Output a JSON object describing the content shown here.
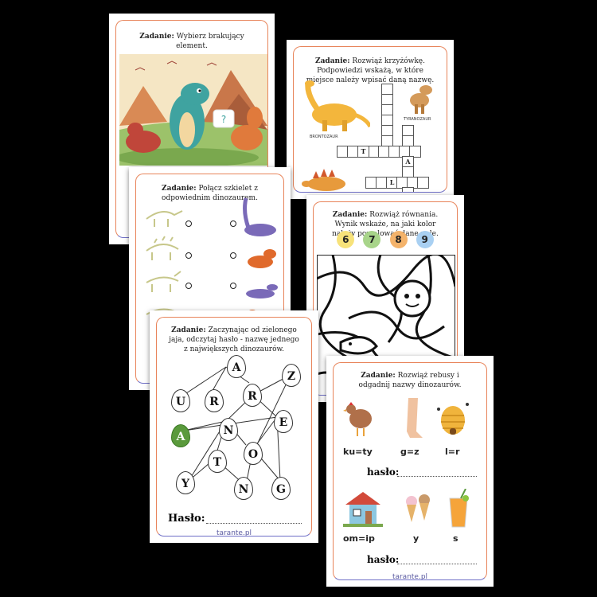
{
  "cards": {
    "missing": {
      "task_prefix": "Zadanie:",
      "task_text": "Wybierz brakujący element.",
      "piece_mark": "?"
    },
    "crossword": {
      "task_prefix": "Zadanie:",
      "task_text": "Rozwiąż krzyżówkę. Podpowiedzi wskażą, w które miejsce należy wpisać daną nazwę.",
      "label_tyranozaur": "TYRANOZAUR",
      "label_brontozaur": "BRONTOZAUR",
      "letters": [
        "T",
        "A",
        "L"
      ]
    },
    "skeleton": {
      "task_prefix": "Zadanie:",
      "task_text": "Połącz szkielet z odpowiednim dinozaurem."
    },
    "equations": {
      "task_prefix": "Zadanie:",
      "task_text": "Rozwiąż równania. Wynik wskaże, na jaki kolor należy pomalować dane pole.",
      "numbers": [
        {
          "value": "6",
          "color": "#f7e27a"
        },
        {
          "value": "7",
          "color": "#a8d48a"
        },
        {
          "value": "8",
          "color": "#f4b36b"
        },
        {
          "value": "9",
          "color": "#a9d0f2"
        }
      ]
    },
    "eggs": {
      "task_prefix": "Zadanie:",
      "task_text": "Zaczynając od zielonego jaja, odczytaj hasło - nazwę jednego z największych dinozaurów.",
      "letters": [
        "A",
        "Z",
        "U",
        "R",
        "R",
        "E",
        "A",
        "N",
        "T",
        "O",
        "Y",
        "N",
        "G"
      ],
      "password_label": "Hasło:",
      "brand": "tarante.pl"
    },
    "rebus": {
      "task_prefix": "Zadanie:",
      "task_text": "Rozwiąż rebusy i odgadnij nazwy dinozaurów.",
      "row1": [
        "ku=ty",
        "g=z",
        "l=r"
      ],
      "password_label_1": "hasło:",
      "row2": [
        "om=ip",
        "y",
        "s"
      ],
      "password_label_2": "hasło:",
      "brand": "tarante.pl"
    }
  }
}
